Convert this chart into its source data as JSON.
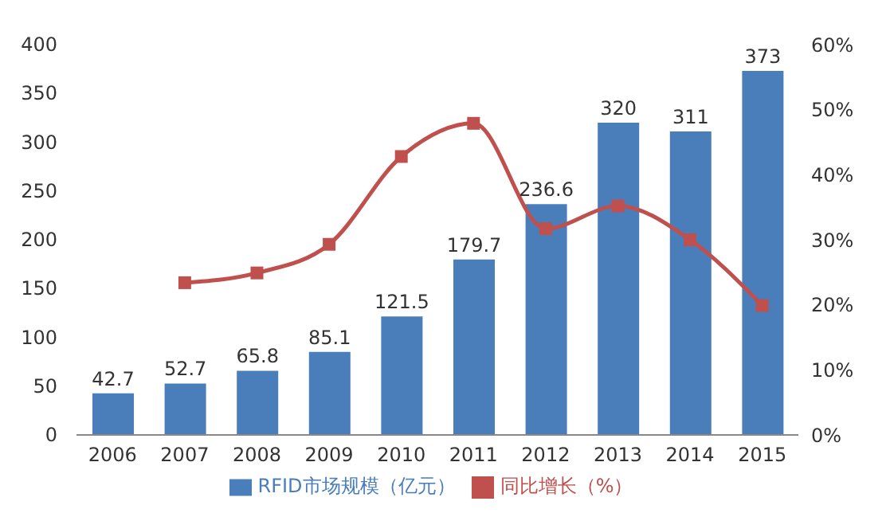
{
  "chart_data": {
    "type": "bar",
    "categories": [
      "2006",
      "2007",
      "2008",
      "2009",
      "2010",
      "2011",
      "2012",
      "2013",
      "2014",
      "2015"
    ],
    "series": [
      {
        "name": "RFID市场规模（亿元）",
        "color": "#4a7ebb",
        "values": [
          42.7,
          52.7,
          65.8,
          85.1,
          121.5,
          179.7,
          236.6,
          320,
          311,
          373
        ],
        "value_labels": [
          "42.7",
          "52.7",
          "65.8",
          "85.1",
          "121.5",
          "179.7",
          "236.6",
          "320",
          "311",
          "373"
        ]
      },
      {
        "name": "同比增长（%）",
        "type": "line",
        "axis": "y2",
        "color": "#c0504d",
        "marker": "square",
        "values": [
          null,
          23.4,
          24.9,
          29.3,
          42.8,
          47.9,
          31.7,
          35.2,
          30,
          19.9
        ]
      }
    ],
    "ylim": [
      0,
      400
    ],
    "yticks": [
      0,
      50,
      100,
      150,
      200,
      250,
      300,
      350,
      400
    ],
    "y2lim": [
      0,
      60
    ],
    "y2ticks": [
      {
        "value": 0,
        "label": "0%"
      },
      {
        "value": 10,
        "label": "10%"
      },
      {
        "value": 20,
        "label": "20%"
      },
      {
        "value": 30,
        "label": "30%"
      },
      {
        "value": 40,
        "label": "40%"
      },
      {
        "value": 50,
        "label": "50%"
      },
      {
        "value": 60,
        "label": "60%"
      }
    ],
    "legend": "bottom",
    "grid": false
  }
}
